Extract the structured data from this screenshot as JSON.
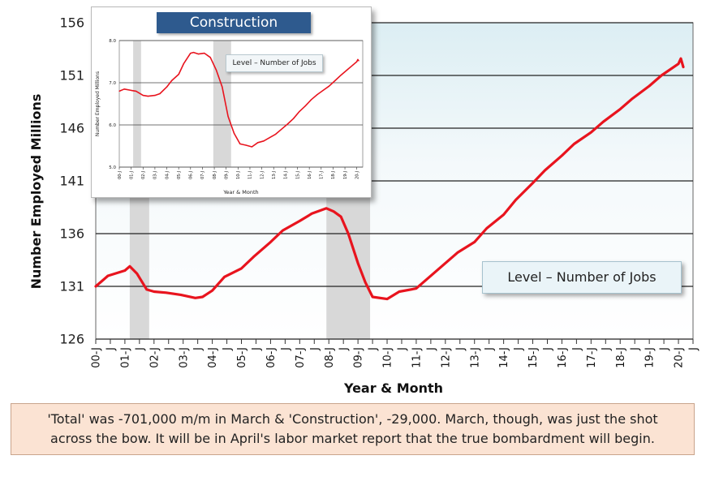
{
  "chart_data": [
    {
      "type": "line",
      "title": "",
      "xlabel": "Year & Month",
      "ylabel": "Number Employed Millions",
      "legend": "Level – Number of Jobs",
      "ylim": [
        126,
        156
      ],
      "yticks": [
        "156",
        "151",
        "146",
        "141",
        "136",
        "131",
        "126"
      ],
      "x_tick_labels": [
        "00-J",
        "J",
        "01-J",
        "J",
        "02-J",
        "J",
        "03-J",
        "J",
        "04-J",
        "J",
        "05-J",
        "J",
        "06-J",
        "J",
        "07-J",
        "J",
        "08-J",
        "J",
        "09-J",
        "J",
        "10-J",
        "J",
        "11-J",
        "J",
        "12-J",
        "J",
        "13-J",
        "J",
        "14-J",
        "J",
        "15-J",
        "J",
        "16-J",
        "J",
        "17-J",
        "J",
        "18-J",
        "J",
        "19-J",
        "J",
        "20-J",
        "J"
      ],
      "recession_shading": [
        [
          "2001-03",
          "2001-11"
        ],
        [
          "2007-12",
          "2009-06"
        ]
      ],
      "series": [
        {
          "name": "Total",
          "color": "#e8141e",
          "x": [
            "2000-01",
            "2000-06",
            "2001-01",
            "2001-03",
            "2001-06",
            "2001-10",
            "2002-01",
            "2002-06",
            "2002-12",
            "2003-06",
            "2003-09",
            "2004-01",
            "2004-06",
            "2005-01",
            "2005-06",
            "2006-01",
            "2006-06",
            "2007-01",
            "2007-06",
            "2007-12",
            "2008-03",
            "2008-06",
            "2008-09",
            "2009-01",
            "2009-04",
            "2009-07",
            "2010-01",
            "2010-06",
            "2011-01",
            "2011-06",
            "2012-01",
            "2012-06",
            "2013-01",
            "2013-06",
            "2014-01",
            "2014-06",
            "2015-01",
            "2015-06",
            "2016-01",
            "2016-06",
            "2017-01",
            "2017-06",
            "2018-01",
            "2018-06",
            "2019-01",
            "2019-06",
            "2020-01",
            "2020-02",
            "2020-03"
          ],
          "values": [
            131.0,
            132.0,
            132.5,
            132.9,
            132.2,
            130.7,
            130.5,
            130.4,
            130.2,
            129.9,
            130.0,
            130.6,
            131.9,
            132.7,
            133.8,
            135.2,
            136.3,
            137.2,
            137.9,
            138.4,
            138.1,
            137.6,
            136.0,
            133.2,
            131.4,
            130.0,
            129.8,
            130.5,
            130.8,
            131.8,
            133.2,
            134.2,
            135.2,
            136.5,
            137.8,
            139.2,
            140.8,
            142.0,
            143.4,
            144.5,
            145.6,
            146.6,
            147.8,
            148.8,
            150.0,
            151.0,
            152.1,
            152.6,
            151.8
          ]
        }
      ]
    },
    {
      "type": "line",
      "title": "Construction",
      "xlabel": "Year & Month",
      "ylabel": "Number Employed Millions",
      "legend": "Level – Number of Jobs",
      "ylim": [
        5.0,
        8.0
      ],
      "yticks": [
        "8.0",
        "7.0",
        "6.0",
        "5.0"
      ],
      "x_tick_labels": [
        "00-J",
        "01-J",
        "02-J",
        "03-J",
        "04-J",
        "05-J",
        "06-J",
        "07-J",
        "08-J",
        "09-J",
        "10-J",
        "11-J",
        "12-J",
        "13-J",
        "14-J",
        "15-J",
        "16-J",
        "17-J",
        "18-J",
        "19-J",
        "20-J"
      ],
      "recession_shading": [
        [
          "2001-03",
          "2001-11"
        ],
        [
          "2007-12",
          "2009-06"
        ]
      ],
      "series": [
        {
          "name": "Construction",
          "color": "#e8141e",
          "x": [
            "2000-01",
            "2000-06",
            "2001-01",
            "2001-06",
            "2002-01",
            "2002-06",
            "2003-01",
            "2003-06",
            "2004-01",
            "2004-06",
            "2005-01",
            "2005-06",
            "2006-01",
            "2006-04",
            "2006-09",
            "2007-03",
            "2007-09",
            "2008-03",
            "2008-09",
            "2009-03",
            "2009-09",
            "2010-03",
            "2010-09",
            "2011-03",
            "2011-09",
            "2012-03",
            "2012-09",
            "2013-03",
            "2013-09",
            "2014-03",
            "2014-09",
            "2015-03",
            "2015-09",
            "2016-03",
            "2016-09",
            "2017-03",
            "2017-09",
            "2018-03",
            "2018-09",
            "2019-03",
            "2019-09",
            "2020-01",
            "2020-02",
            "2020-03"
          ],
          "values": [
            6.8,
            6.85,
            6.82,
            6.8,
            6.7,
            6.68,
            6.7,
            6.74,
            6.9,
            7.05,
            7.2,
            7.45,
            7.7,
            7.72,
            7.68,
            7.7,
            7.6,
            7.3,
            6.9,
            6.2,
            5.8,
            5.55,
            5.52,
            5.48,
            5.58,
            5.62,
            5.7,
            5.78,
            5.9,
            6.02,
            6.15,
            6.32,
            6.45,
            6.6,
            6.72,
            6.82,
            6.92,
            7.05,
            7.18,
            7.3,
            7.42,
            7.5,
            7.55,
            7.52
          ]
        }
      ]
    }
  ],
  "note": {
    "line1": "'Total' was -701,000 m/m in March & 'Construction', -29,000. March, though, was just the shot",
    "line2": "across the bow. It will be in April's labor market report that the true bombardment will begin."
  }
}
